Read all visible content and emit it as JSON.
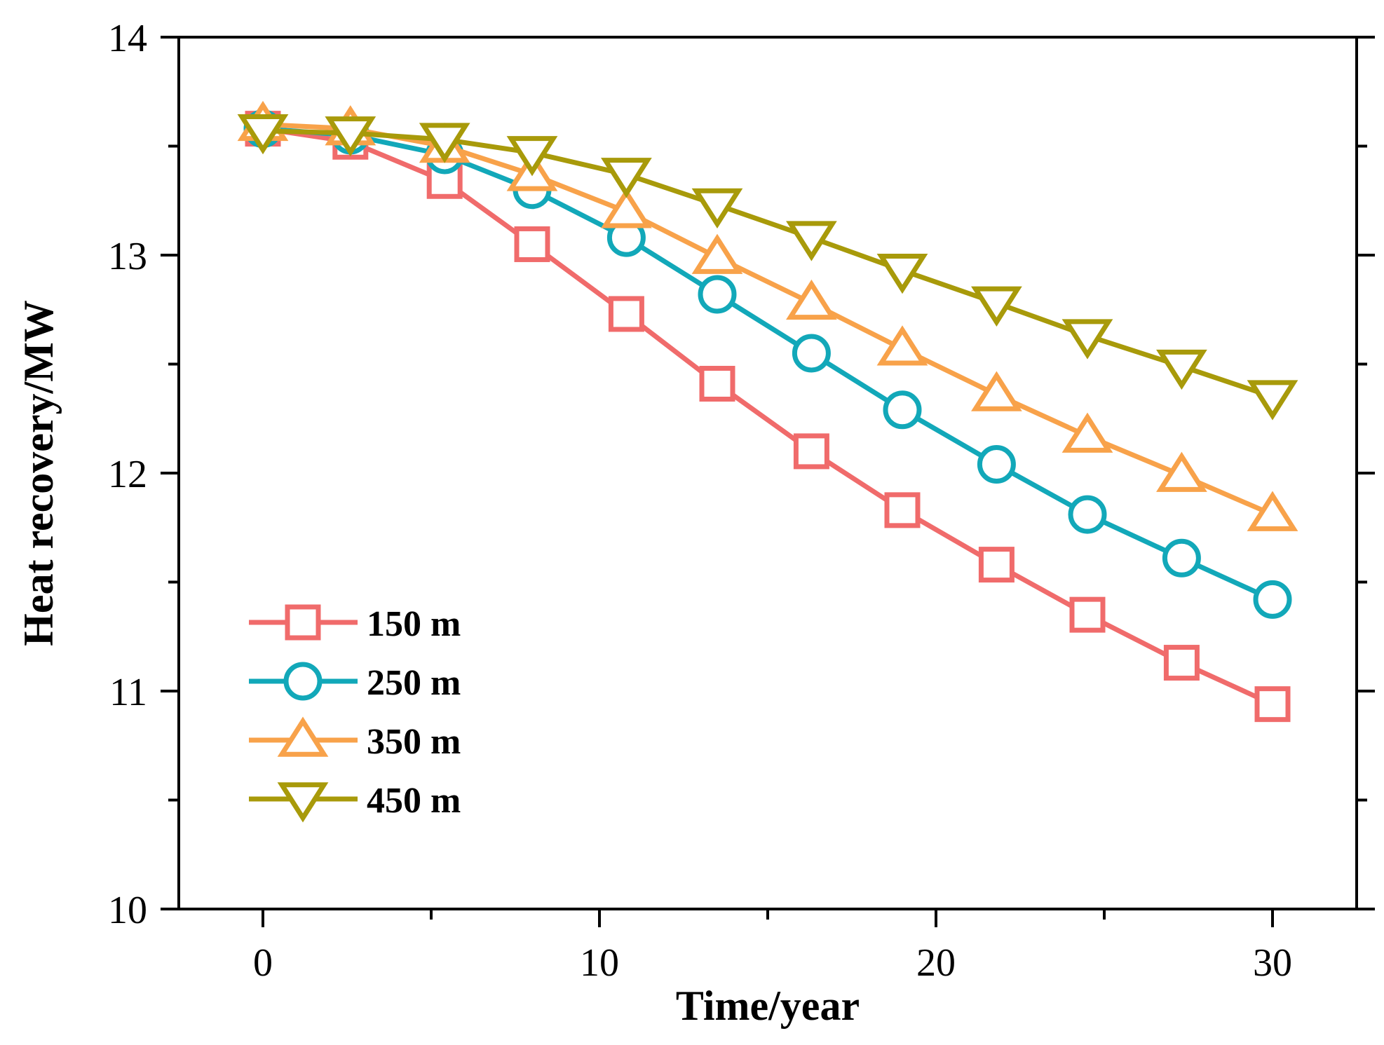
{
  "chart_data": {
    "type": "line",
    "xlabel": "Time/year",
    "ylabel": "Heat recovery/MW",
    "xlim": [
      -2.5,
      32.5
    ],
    "ylim": [
      10,
      14
    ],
    "x_ticks": [
      0,
      10,
      20,
      30
    ],
    "x_minor_ticks": [
      5,
      15,
      25
    ],
    "y_ticks": [
      10,
      11,
      12,
      13,
      14
    ],
    "y_minor_ticks": [
      10.5,
      11.5,
      12.5,
      13.5
    ],
    "x_tick_labels": [
      "0",
      "10",
      "20",
      "30"
    ],
    "y_tick_labels": [
      "10",
      "11",
      "12",
      "13",
      "14"
    ],
    "legend_position": "bottom-left",
    "grid": false,
    "x": [
      0,
      2.6,
      5.4,
      8.0,
      10.8,
      13.5,
      16.3,
      19.0,
      21.8,
      24.5,
      27.3,
      30.0
    ],
    "series": [
      {
        "name": "150 m",
        "color": "#f06b6b",
        "marker": "square",
        "values": [
          13.58,
          13.52,
          13.34,
          13.05,
          12.73,
          12.41,
          12.1,
          11.83,
          11.58,
          11.35,
          11.13,
          10.94
        ]
      },
      {
        "name": "250 m",
        "color": "#12a8b9",
        "marker": "circle",
        "values": [
          13.58,
          13.55,
          13.46,
          13.3,
          13.08,
          12.82,
          12.55,
          12.29,
          12.04,
          11.81,
          11.61,
          11.42
        ]
      },
      {
        "name": "350 m",
        "color": "#f8a24a",
        "marker": "triangle-up",
        "values": [
          13.6,
          13.58,
          13.5,
          13.37,
          13.2,
          12.99,
          12.78,
          12.57,
          12.36,
          12.17,
          11.99,
          11.81
        ]
      },
      {
        "name": "450 m",
        "color": "#a89a0a",
        "marker": "triangle-down",
        "values": [
          13.57,
          13.56,
          13.53,
          13.47,
          13.37,
          13.23,
          13.08,
          12.93,
          12.78,
          12.63,
          12.49,
          12.35
        ]
      }
    ]
  }
}
